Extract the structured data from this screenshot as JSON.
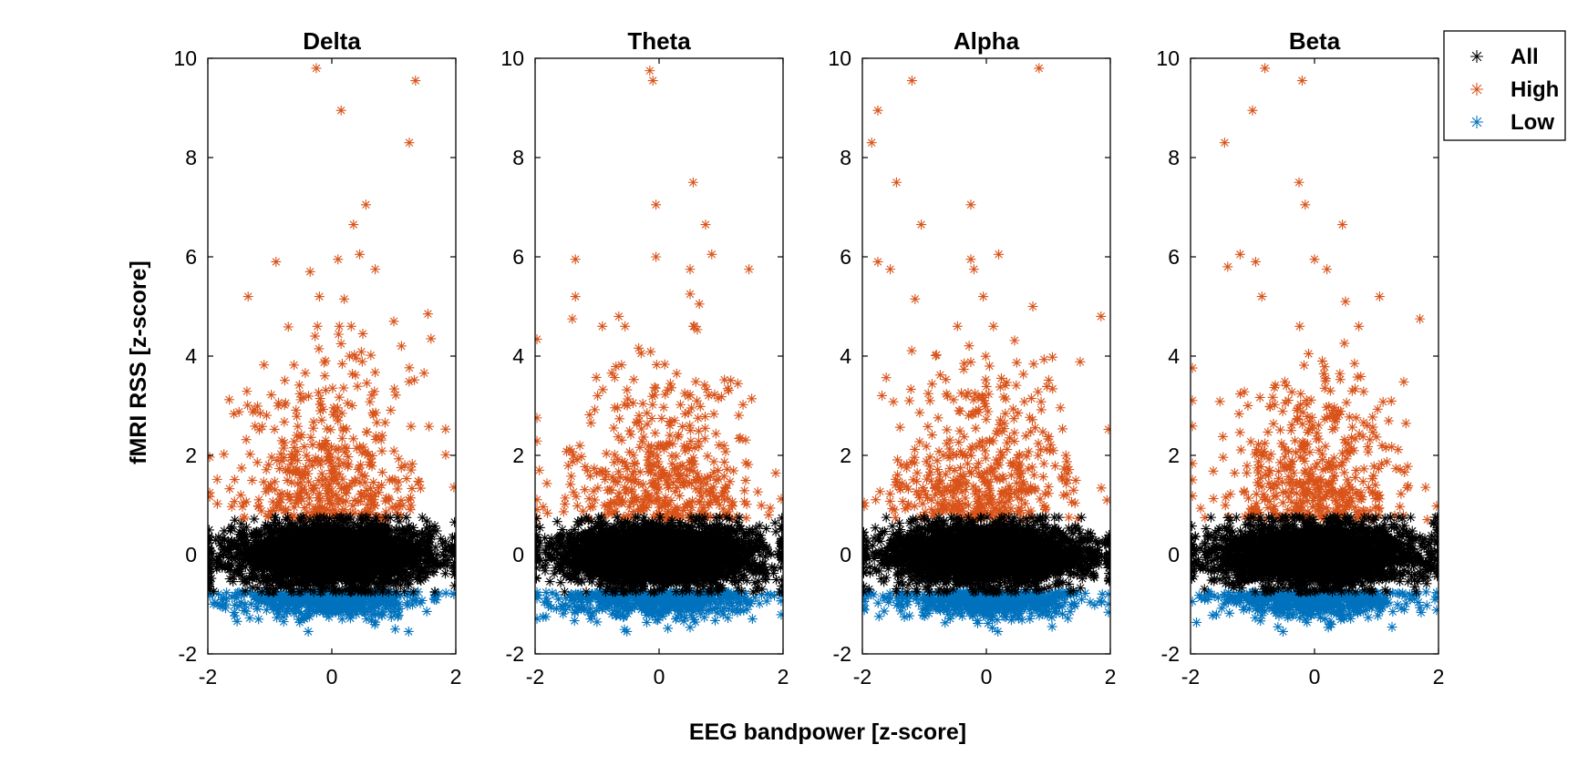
{
  "chart_data": {
    "type": "scatter",
    "marker": "asterisk",
    "xlabel": "EEG bandpower [z-score]",
    "ylabel": "fMRI RSS [z-score]",
    "xlim": [
      -2,
      2
    ],
    "ylim": [
      -2,
      10
    ],
    "xticks": [
      -2,
      0,
      2
    ],
    "yticks": [
      -2,
      0,
      2,
      4,
      6,
      8,
      10
    ],
    "legend": {
      "location": "top-right",
      "entries": [
        {
          "name": "All",
          "color": "#000000"
        },
        {
          "name": "High",
          "color": "#d95319"
        },
        {
          "name": "Low",
          "color": "#0072bd"
        }
      ]
    },
    "panels": [
      {
        "title": "Delta",
        "series": {
          "High": {
            "count": 450,
            "y_range": [
              0.7,
              10
            ],
            "outliers": [
              [
                -0.25,
                9.8
              ],
              [
                1.35,
                9.55
              ],
              [
                0.15,
                8.95
              ],
              [
                1.25,
                8.3
              ],
              [
                0.55,
                7.05
              ],
              [
                0.35,
                6.65
              ],
              [
                0.45,
                6.05
              ],
              [
                0.1,
                5.95
              ],
              [
                -0.9,
                5.9
              ],
              [
                0.7,
                5.75
              ],
              [
                -0.35,
                5.7
              ],
              [
                -1.35,
                5.2
              ],
              [
                -0.2,
                5.2
              ],
              [
                0.2,
                5.15
              ],
              [
                1.55,
                4.85
              ],
              [
                0.5,
                4.45
              ],
              [
                1.6,
                4.35
              ],
              [
                1.0,
                4.7
              ]
            ]
          },
          "All": {
            "count": 3000,
            "y_range": [
              -0.75,
              0.75
            ]
          },
          "Low": {
            "count": 600,
            "y_range": [
              -1.55,
              -0.5
            ]
          }
        }
      },
      {
        "title": "Theta",
        "series": {
          "High": {
            "count": 450,
            "y_range": [
              0.7,
              10
            ],
            "outliers": [
              [
                -0.15,
                9.75
              ],
              [
                -0.1,
                9.55
              ],
              [
                0.55,
                7.5
              ],
              [
                -0.05,
                7.05
              ],
              [
                0.75,
                6.65
              ],
              [
                0.85,
                6.05
              ],
              [
                -0.05,
                6.0
              ],
              [
                -1.35,
                5.95
              ],
              [
                0.5,
                5.75
              ],
              [
                1.45,
                5.75
              ],
              [
                0.5,
                5.25
              ],
              [
                -1.35,
                5.2
              ],
              [
                0.65,
                5.05
              ],
              [
                -0.65,
                4.8
              ],
              [
                -1.4,
                4.75
              ]
            ]
          },
          "All": {
            "count": 3000,
            "y_range": [
              -0.75,
              0.75
            ]
          },
          "Low": {
            "count": 600,
            "y_range": [
              -1.55,
              -0.5
            ]
          }
        }
      },
      {
        "title": "Alpha",
        "series": {
          "High": {
            "count": 450,
            "y_range": [
              0.7,
              10
            ],
            "outliers": [
              [
                0.85,
                9.8
              ],
              [
                -1.2,
                9.55
              ],
              [
                -1.75,
                8.95
              ],
              [
                -1.85,
                8.3
              ],
              [
                -1.45,
                7.5
              ],
              [
                -0.25,
                7.05
              ],
              [
                -1.05,
                6.65
              ],
              [
                0.2,
                6.05
              ],
              [
                -0.25,
                5.95
              ],
              [
                -0.2,
                5.75
              ],
              [
                -1.75,
                5.9
              ],
              [
                -1.55,
                5.75
              ],
              [
                -0.05,
                5.2
              ],
              [
                -1.15,
                5.15
              ],
              [
                0.75,
                5.0
              ],
              [
                1.85,
                4.8
              ]
            ]
          },
          "All": {
            "count": 3000,
            "y_range": [
              -0.75,
              0.75
            ]
          },
          "Low": {
            "count": 600,
            "y_range": [
              -1.55,
              -0.5
            ]
          }
        }
      },
      {
        "title": "Beta",
        "series": {
          "High": {
            "count": 450,
            "y_range": [
              0.7,
              10
            ],
            "outliers": [
              [
                -0.8,
                9.8
              ],
              [
                -0.2,
                9.55
              ],
              [
                -1.0,
                8.95
              ],
              [
                -1.45,
                8.3
              ],
              [
                -0.25,
                7.5
              ],
              [
                -0.15,
                7.05
              ],
              [
                0.45,
                6.65
              ],
              [
                -1.2,
                6.05
              ],
              [
                0.0,
                5.95
              ],
              [
                -0.95,
                5.9
              ],
              [
                0.2,
                5.75
              ],
              [
                -1.4,
                5.8
              ],
              [
                -0.85,
                5.2
              ],
              [
                1.05,
                5.2
              ],
              [
                0.5,
                5.1
              ],
              [
                1.7,
                4.75
              ]
            ]
          },
          "All": {
            "count": 3000,
            "y_range": [
              -0.75,
              0.75
            ]
          },
          "Low": {
            "count": 600,
            "y_range": [
              -1.55,
              -0.5
            ]
          }
        }
      }
    ]
  }
}
